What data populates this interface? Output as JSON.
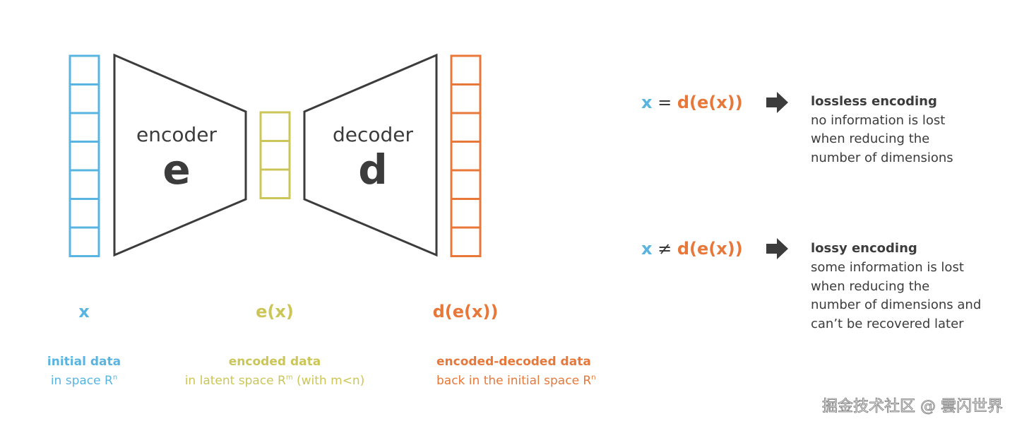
{
  "colors": {
    "input": "#5ab4e0",
    "latent": "#cbc657",
    "output": "#e8783a",
    "dark": "#3c3c3c",
    "watermark": "#e8e8e8"
  },
  "encoder": {
    "label": "encoder",
    "symbol": "e"
  },
  "decoder": {
    "label": "decoder",
    "symbol": "d"
  },
  "vectors": [
    {
      "symbol": "x",
      "title": "initial data",
      "desc": "in space R",
      "sup": "n"
    },
    {
      "symbol": "e(x)",
      "title": "encoded data",
      "desc": "in latent space R",
      "sup": "m",
      "desc_after": " (with m<n)"
    },
    {
      "symbol": "d(e(x))",
      "title": "encoded-decoded data",
      "desc": "back in the initial space R",
      "sup": "n"
    }
  ],
  "cases": [
    {
      "lhs": "x",
      "op": " = ",
      "rhs": "d(e(x))",
      "title": "lossless encoding",
      "lines": [
        "no information is lost",
        "when reducing the",
        "number of dimensions"
      ]
    },
    {
      "lhs": "x",
      "op": " ≠ ",
      "rhs": "d(e(x))",
      "title": "lossy encoding",
      "lines": [
        "some information is lost",
        "when reducing the",
        "number of dimensions and",
        "can’t be recovered later"
      ]
    }
  ],
  "watermark": "掘金技术社区 @ 雲闪世界"
}
